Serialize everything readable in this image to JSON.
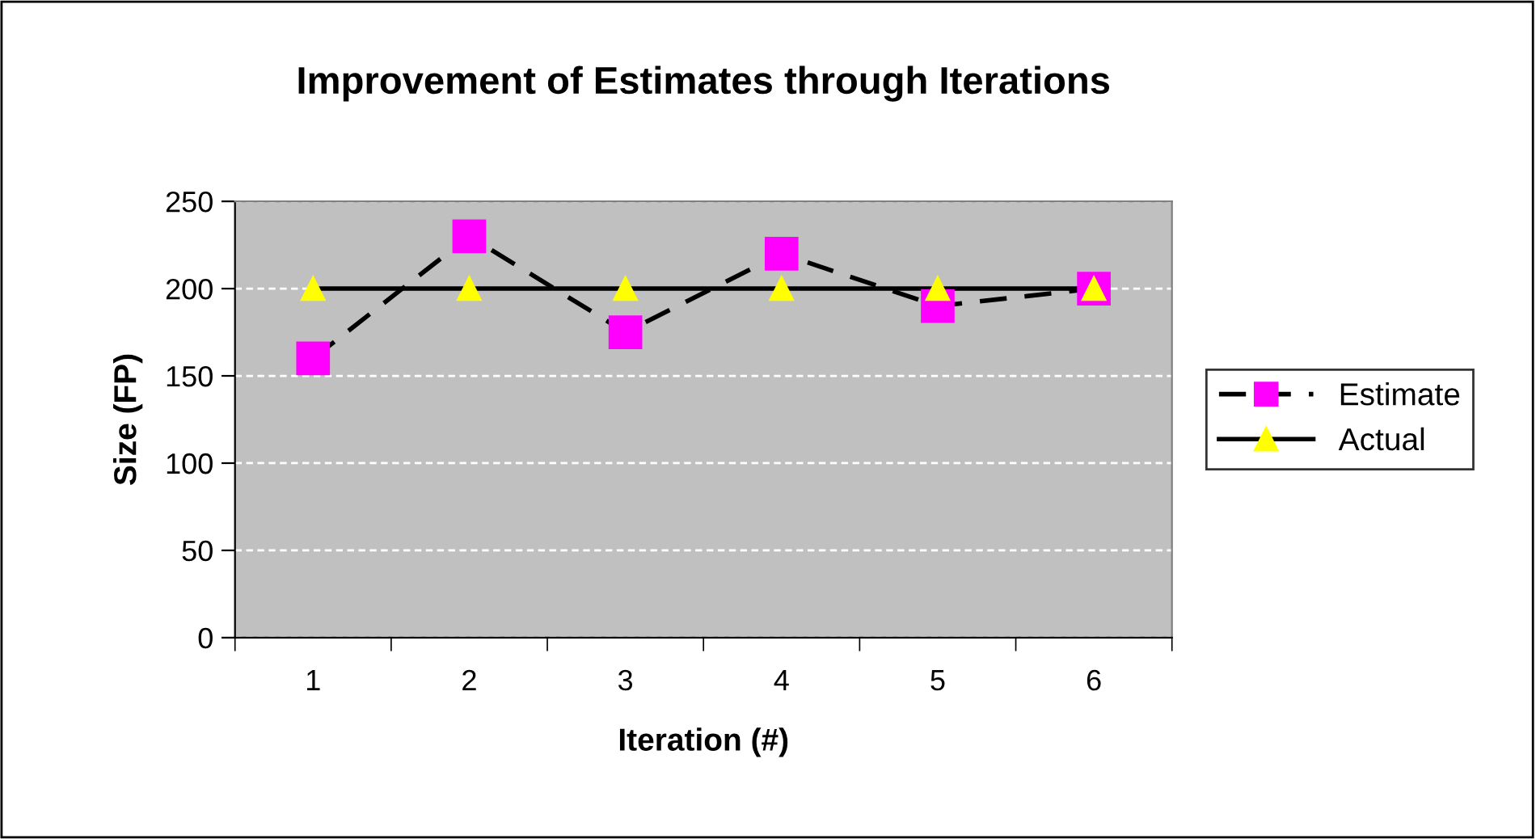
{
  "chart_data": {
    "type": "line",
    "title": "Improvement of Estimates through Iterations",
    "xlabel": "Iteration (#)",
    "ylabel": "Size (FP)",
    "categories": [
      "1",
      "2",
      "3",
      "4",
      "5",
      "6"
    ],
    "series": [
      {
        "name": "Estimate",
        "color": "#ff00ff",
        "marker": "square",
        "line_style": "dashed",
        "values": [
          160,
          230,
          175,
          220,
          190,
          200
        ]
      },
      {
        "name": "Actual",
        "color": "#ffff00",
        "marker": "triangle",
        "line_style": "solid",
        "values": [
          200,
          200,
          200,
          200,
          200,
          200
        ]
      }
    ],
    "ylim": [
      0,
      250
    ],
    "yticks": [
      0,
      50,
      100,
      150,
      200,
      250
    ],
    "grid": "y",
    "legend": "right"
  }
}
